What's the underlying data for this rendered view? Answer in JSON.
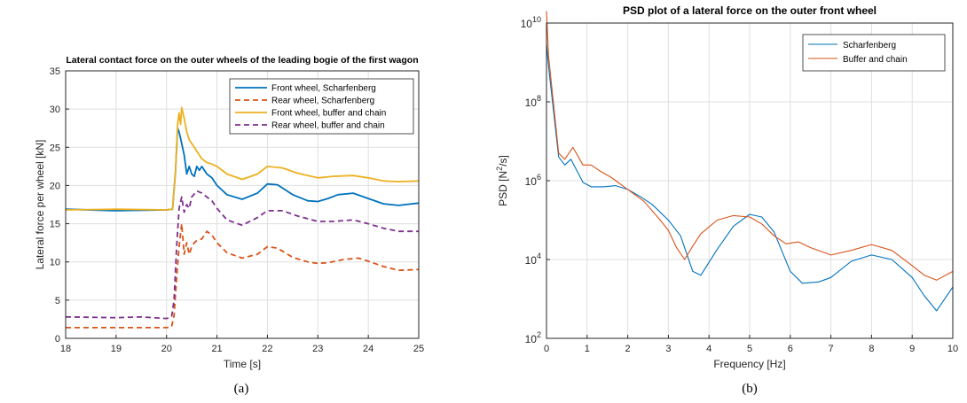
{
  "chart_data": [
    {
      "type": "line",
      "title": "Lateral contact force on the outer wheels of the leading bogie of the first wagon",
      "xlabel": "Time [s]",
      "ylabel": "Lateral force per wheel [kN]",
      "caption": "(a)",
      "xlim": [
        18,
        25
      ],
      "ylim": [
        0,
        35
      ],
      "xticks": [
        "18",
        "19",
        "20",
        "21",
        "22",
        "23",
        "24",
        "25"
      ],
      "yticks": [
        "0",
        "5",
        "10",
        "15",
        "20",
        "25",
        "30",
        "35"
      ],
      "grid": true,
      "legend_position": "top-right",
      "series": [
        {
          "name": "Front wheel, Scharfenberg",
          "color": "#0072BD",
          "style": "solid",
          "x": [
            18,
            19,
            20,
            20.12,
            20.18,
            20.22,
            20.25,
            20.3,
            20.35,
            20.4,
            20.45,
            20.5,
            20.55,
            20.6,
            20.65,
            20.7,
            20.8,
            20.9,
            21,
            21.2,
            21.5,
            21.8,
            22,
            22.2,
            22.5,
            22.8,
            23,
            23.2,
            23.4,
            23.7,
            24,
            24.3,
            24.6,
            25
          ],
          "y": [
            16.9,
            16.7,
            16.8,
            16.9,
            22.0,
            27.5,
            27.0,
            25.5,
            24.0,
            21.5,
            22.5,
            21.5,
            21.2,
            22.5,
            22.0,
            22.5,
            21.5,
            21.0,
            20.0,
            18.8,
            18.2,
            19.0,
            20.2,
            20.1,
            18.8,
            18.0,
            17.9,
            18.3,
            18.8,
            19.0,
            18.3,
            17.6,
            17.4,
            17.7
          ]
        },
        {
          "name": "Rear wheel, Scharfenberg",
          "color": "#D95319",
          "style": "dashed",
          "x": [
            18,
            19,
            20,
            20.1,
            20.15,
            20.2,
            20.25,
            20.3,
            20.35,
            20.4,
            20.45,
            20.5,
            20.55,
            20.6,
            20.7,
            20.8,
            20.9,
            21,
            21.2,
            21.5,
            21.8,
            22,
            22.2,
            22.5,
            22.8,
            23,
            23.2,
            23.5,
            23.8,
            24,
            24.3,
            24.6,
            25
          ],
          "y": [
            1.4,
            1.4,
            1.4,
            1.5,
            3.0,
            8.0,
            12.0,
            15.0,
            11.0,
            12.5,
            11.0,
            12.0,
            12.5,
            12.8,
            13.0,
            14.0,
            13.5,
            12.5,
            11.2,
            10.5,
            11.0,
            12.0,
            11.8,
            10.6,
            10.0,
            9.8,
            9.9,
            10.3,
            10.5,
            10.1,
            9.4,
            8.9,
            9.0
          ]
        },
        {
          "name": "Front wheel, buffer and chain",
          "color": "#EDB120",
          "style": "solid",
          "x": [
            18,
            19,
            20,
            20.12,
            20.18,
            20.22,
            20.25,
            20.28,
            20.3,
            20.35,
            20.4,
            20.45,
            20.5,
            20.55,
            20.6,
            20.7,
            20.8,
            20.9,
            21,
            21.2,
            21.5,
            21.8,
            22,
            22.3,
            22.6,
            23,
            23.3,
            23.7,
            24,
            24.3,
            24.6,
            25
          ],
          "y": [
            16.8,
            16.9,
            16.8,
            16.9,
            22.0,
            28.0,
            29.5,
            28.0,
            30.2,
            28.8,
            27.0,
            26.0,
            25.5,
            25.0,
            24.5,
            23.5,
            23.0,
            22.8,
            22.5,
            21.5,
            20.8,
            21.5,
            22.5,
            22.3,
            21.6,
            21.0,
            21.2,
            21.3,
            21.0,
            20.6,
            20.5,
            20.6
          ]
        },
        {
          "name": "Rear wheel, buffer and chain",
          "color": "#7E2F8E",
          "style": "dashed",
          "x": [
            18,
            19,
            19.5,
            20,
            20.1,
            20.15,
            20.2,
            20.25,
            20.3,
            20.35,
            20.4,
            20.45,
            20.5,
            20.6,
            20.7,
            20.8,
            20.9,
            21,
            21.2,
            21.5,
            21.8,
            22,
            22.3,
            22.6,
            23,
            23.3,
            23.7,
            24,
            24.3,
            24.6,
            25
          ],
          "y": [
            2.8,
            2.7,
            2.8,
            2.6,
            2.8,
            5.0,
            12.0,
            17.0,
            18.5,
            16.5,
            17.5,
            17.0,
            18.5,
            19.3,
            19.0,
            18.5,
            18.0,
            17.0,
            15.5,
            14.8,
            15.8,
            16.7,
            16.7,
            16.0,
            15.3,
            15.3,
            15.5,
            15.0,
            14.4,
            14.0,
            14.0
          ]
        }
      ]
    },
    {
      "type": "line",
      "title": "PSD plot of a lateral force on the outer front wheel",
      "xlabel": "Frequency [Hz]",
      "ylabel_main": "PSD [N",
      "ylabel_sup": "2",
      "ylabel_end": "/s]",
      "caption": "(b)",
      "xlim": [
        0,
        10
      ],
      "yscale": "log",
      "ylim": [
        100,
        10000000000
      ],
      "xticks": [
        "0",
        "1",
        "2",
        "3",
        "4",
        "5",
        "6",
        "7",
        "8",
        "9",
        "10"
      ],
      "ytick_base": "10",
      "ytick_exps": [
        "2",
        "4",
        "6",
        "8",
        "10"
      ],
      "grid": true,
      "legend_position": "top-right",
      "series": [
        {
          "name": "Scharfenberg",
          "color": "#0072BD",
          "x": [
            0,
            0.05,
            0.3,
            0.45,
            0.6,
            0.9,
            1.1,
            1.4,
            1.7,
            2.0,
            2.3,
            2.6,
            3.0,
            3.3,
            3.6,
            3.8,
            4.2,
            4.6,
            5.0,
            5.3,
            5.6,
            6.0,
            6.3,
            6.7,
            7.0,
            7.5,
            8.0,
            8.5,
            9.0,
            9.3,
            9.6,
            10.0
          ],
          "y": [
            3000000000,
            800000000,
            4000000,
            2500000,
            3500000,
            900000,
            700000,
            700000,
            750000,
            600000,
            400000,
            250000,
            100000,
            40000,
            5000,
            4000,
            18000,
            70000,
            140000,
            120000,
            50000,
            5000,
            2500,
            2700,
            3500,
            9000,
            13000,
            10000,
            3500,
            1200,
            500,
            2000
          ]
        },
        {
          "name": "Buffer and chain",
          "color": "#D95319",
          "x": [
            0,
            0.05,
            0.3,
            0.45,
            0.65,
            0.9,
            1.1,
            1.3,
            1.6,
            2.0,
            2.4,
            2.8,
            3.0,
            3.2,
            3.4,
            3.6,
            3.8,
            4.2,
            4.6,
            5.0,
            5.3,
            5.6,
            5.9,
            6.2,
            6.5,
            7.0,
            7.5,
            8.0,
            8.5,
            9.0,
            9.3,
            9.6,
            10.0
          ],
          "y": [
            20000000000,
            1500000000,
            5000000,
            3500000,
            7000000,
            2500000,
            2500000,
            1800000,
            1200000,
            600000,
            300000,
            100000,
            55000,
            20000,
            10000,
            22000,
            45000,
            100000,
            130000,
            120000,
            80000,
            40000,
            25000,
            28000,
            20000,
            13000,
            17000,
            24000,
            17000,
            7000,
            4000,
            3000,
            5000
          ]
        }
      ]
    }
  ]
}
